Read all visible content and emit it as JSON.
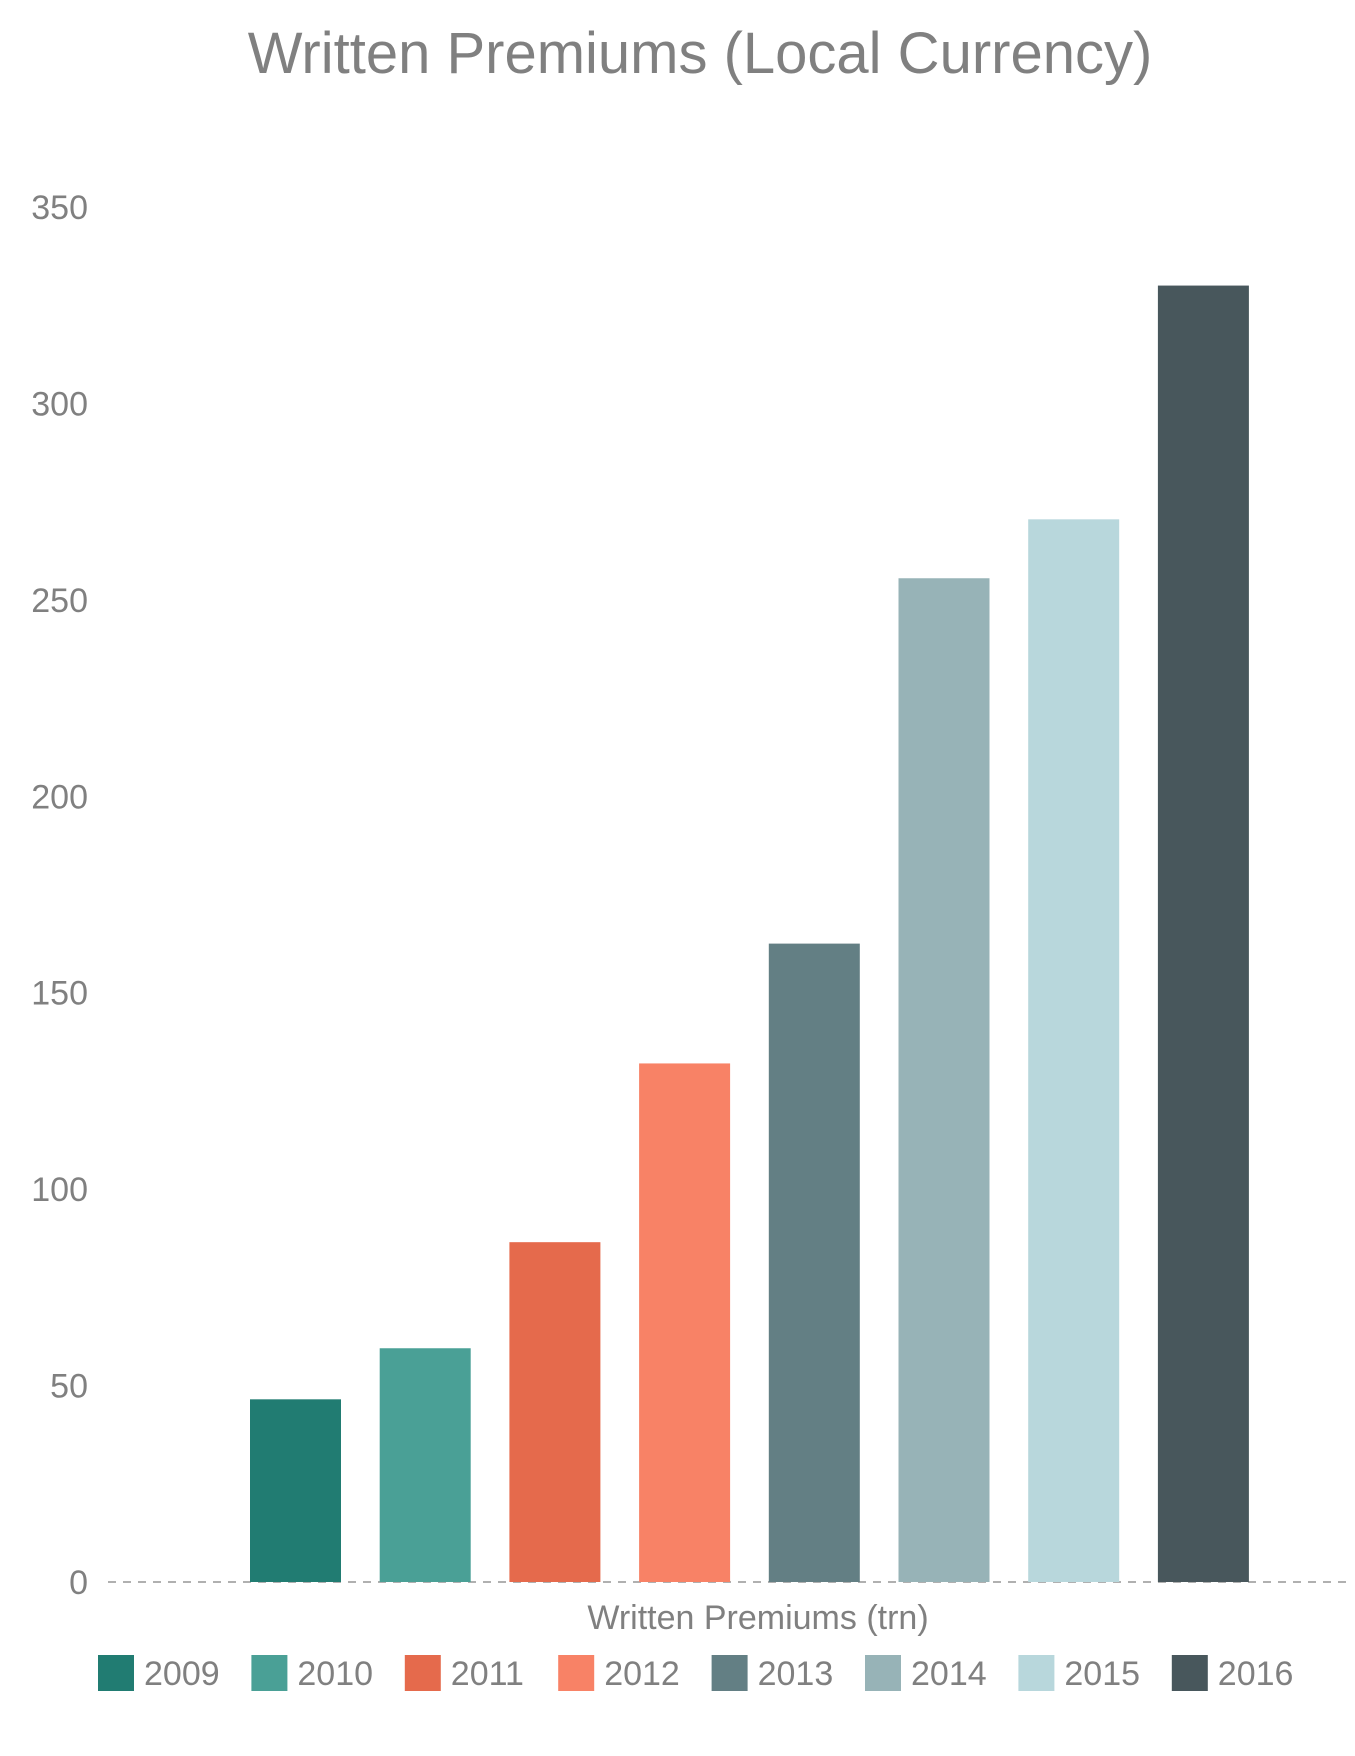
{
  "chart_data": {
    "type": "bar",
    "title": "Written Premiums (Local Currency)",
    "xlabel": "Written Premiums (trn)",
    "ylabel": "",
    "ylim": [
      0,
      350
    ],
    "yticks": [
      0,
      50,
      100,
      150,
      200,
      250,
      300,
      350
    ],
    "grid": false,
    "legend_position": "bottom",
    "categories": [
      "Written Premiums (trn)"
    ],
    "series": [
      {
        "name": "2009",
        "values": [
          46.5
        ],
        "color": "#217c72"
      },
      {
        "name": "2010",
        "values": [
          59.5
        ],
        "color": "#4aa096"
      },
      {
        "name": "2011",
        "values": [
          86.5
        ],
        "color": "#e56a4c"
      },
      {
        "name": "2012",
        "values": [
          132
        ],
        "color": "#f88266"
      },
      {
        "name": "2013",
        "values": [
          162.5
        ],
        "color": "#637f84"
      },
      {
        "name": "2014",
        "values": [
          255.5
        ],
        "color": "#97b3b7"
      },
      {
        "name": "2015",
        "values": [
          270.5
        ],
        "color": "#b8d7dc"
      },
      {
        "name": "2016",
        "values": [
          330
        ],
        "color": "#48575c"
      }
    ]
  }
}
